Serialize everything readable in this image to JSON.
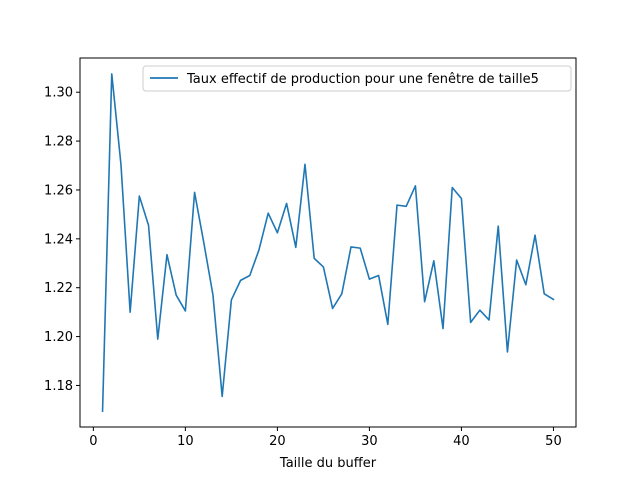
{
  "chart_data": {
    "type": "line",
    "title": "",
    "xlabel": "Taille du buffer",
    "ylabel": "",
    "xlim": [
      -1.45,
      52.45
    ],
    "ylim": [
      1.163,
      1.314
    ],
    "xticks": [
      0,
      10,
      20,
      30,
      40,
      50
    ],
    "yticks": [
      1.18,
      1.2,
      1.22,
      1.24,
      1.26,
      1.28,
      1.3
    ],
    "xtick_labels": [
      "0",
      "10",
      "20",
      "30",
      "40",
      "50"
    ],
    "ytick_labels": [
      "1.18",
      "1.20",
      "1.22",
      "1.24",
      "1.26",
      "1.28",
      "1.30"
    ],
    "grid": false,
    "legend_position": "top-right",
    "series": [
      {
        "name": "Taux effectif de production pour une fenêtre de taille5",
        "color": "#1f77b4",
        "x": [
          1,
          2,
          3,
          4,
          5,
          6,
          7,
          8,
          9,
          10,
          11,
          12,
          13,
          14,
          15,
          16,
          17,
          18,
          19,
          20,
          21,
          22,
          23,
          24,
          25,
          26,
          27,
          28,
          29,
          30,
          31,
          32,
          33,
          34,
          35,
          36,
          37,
          38,
          39,
          40,
          41,
          42,
          43,
          44,
          45,
          46,
          47,
          48,
          49,
          50
        ],
        "y": [
          1.1695,
          1.3075,
          1.2705,
          1.21,
          1.2575,
          1.2455,
          1.199,
          1.2335,
          1.217,
          1.2105,
          1.259,
          1.2385,
          1.217,
          1.1755,
          1.215,
          1.223,
          1.225,
          1.2355,
          1.2505,
          1.2425,
          1.2545,
          1.2365,
          1.2705,
          1.232,
          1.2285,
          1.2115,
          1.2175,
          1.2367,
          1.2362,
          1.2235,
          1.225,
          1.205,
          1.2538,
          1.2533,
          1.2617,
          1.2143,
          1.231,
          1.2033,
          1.261,
          1.2565,
          1.2058,
          1.2108,
          1.2068,
          1.2452,
          1.1937,
          1.2313,
          1.2212,
          1.2415,
          1.2175,
          1.2152
        ]
      }
    ]
  }
}
